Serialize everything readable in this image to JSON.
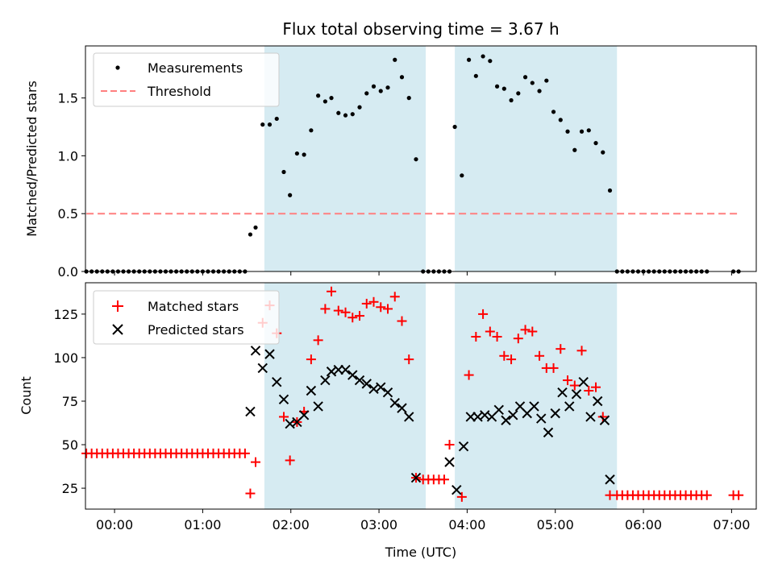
{
  "figure": {
    "title": "Flux total observing time = 3.67 h",
    "xlabel": "Time (UTC)"
  },
  "chart_data": [
    {
      "type": "scatter",
      "panel": "top",
      "title": "Flux total observing time = 3.67 h",
      "xlabel": "",
      "ylabel": "Matched/Predicted stars",
      "xlim": [
        -0.33,
        7.28
      ],
      "ylim": [
        0,
        1.95
      ],
      "x_ticks": [
        0,
        1,
        2,
        3,
        4,
        5,
        6,
        7
      ],
      "y_ticks": [
        0.0,
        0.5,
        1.0,
        1.5
      ],
      "y_tick_labels": [
        "0.0",
        "0.5",
        "1.0",
        "1.5"
      ],
      "grid": false,
      "legend": "top-left",
      "shaded_intervals": [
        [
          1.7,
          3.53
        ],
        [
          3.86,
          5.7
        ]
      ],
      "shade_color": "#add8e6",
      "series": [
        {
          "name": "Measurements",
          "marker": "dot",
          "color": "#000000",
          "points": [
            [
              -0.32,
              0
            ],
            [
              -0.26,
              0
            ],
            [
              -0.2,
              0
            ],
            [
              -0.14,
              0
            ],
            [
              -0.08,
              0
            ],
            [
              -0.02,
              0
            ],
            [
              0.04,
              0
            ],
            [
              0.1,
              0
            ],
            [
              0.16,
              0
            ],
            [
              0.22,
              0
            ],
            [
              0.28,
              0
            ],
            [
              0.34,
              0
            ],
            [
              0.4,
              0
            ],
            [
              0.46,
              0
            ],
            [
              0.52,
              0
            ],
            [
              0.58,
              0
            ],
            [
              0.64,
              0
            ],
            [
              0.7,
              0
            ],
            [
              0.76,
              0
            ],
            [
              0.82,
              0
            ],
            [
              0.88,
              0
            ],
            [
              0.94,
              0
            ],
            [
              1.0,
              0
            ],
            [
              1.06,
              0
            ],
            [
              1.12,
              0
            ],
            [
              1.18,
              0
            ],
            [
              1.24,
              0
            ],
            [
              1.3,
              0
            ],
            [
              1.36,
              0
            ],
            [
              1.42,
              0
            ],
            [
              1.48,
              0
            ],
            [
              1.54,
              0.32
            ],
            [
              1.6,
              0.38
            ],
            [
              1.68,
              1.27
            ],
            [
              1.76,
              1.27
            ],
            [
              1.84,
              1.32
            ],
            [
              1.92,
              0.86
            ],
            [
              1.99,
              0.66
            ],
            [
              2.07,
              1.02
            ],
            [
              2.15,
              1.01
            ],
            [
              2.23,
              1.22
            ],
            [
              2.31,
              1.52
            ],
            [
              2.39,
              1.47
            ],
            [
              2.46,
              1.5
            ],
            [
              2.54,
              1.37
            ],
            [
              2.62,
              1.35
            ],
            [
              2.7,
              1.36
            ],
            [
              2.78,
              1.42
            ],
            [
              2.86,
              1.54
            ],
            [
              2.94,
              1.6
            ],
            [
              3.02,
              1.56
            ],
            [
              3.1,
              1.59
            ],
            [
              3.18,
              1.83
            ],
            [
              3.26,
              1.68
            ],
            [
              3.34,
              1.5
            ],
            [
              3.42,
              0.97
            ],
            [
              3.5,
              0
            ],
            [
              3.56,
              0
            ],
            [
              3.62,
              0
            ],
            [
              3.68,
              0
            ],
            [
              3.74,
              0
            ],
            [
              3.8,
              0
            ],
            [
              3.86,
              1.25
            ],
            [
              3.94,
              0.83
            ],
            [
              4.02,
              1.83
            ],
            [
              4.1,
              1.69
            ],
            [
              4.18,
              1.86
            ],
            [
              4.26,
              1.82
            ],
            [
              4.34,
              1.6
            ],
            [
              4.42,
              1.58
            ],
            [
              4.5,
              1.48
            ],
            [
              4.58,
              1.54
            ],
            [
              4.66,
              1.68
            ],
            [
              4.74,
              1.63
            ],
            [
              4.82,
              1.56
            ],
            [
              4.9,
              1.65
            ],
            [
              4.98,
              1.38
            ],
            [
              5.06,
              1.31
            ],
            [
              5.14,
              1.21
            ],
            [
              5.22,
              1.05
            ],
            [
              5.3,
              1.21
            ],
            [
              5.38,
              1.22
            ],
            [
              5.46,
              1.11
            ],
            [
              5.54,
              1.03
            ],
            [
              5.62,
              0.7
            ],
            [
              5.7,
              0
            ],
            [
              5.76,
              0
            ],
            [
              5.82,
              0
            ],
            [
              5.88,
              0
            ],
            [
              5.94,
              0
            ],
            [
              6.0,
              0
            ],
            [
              6.06,
              0
            ],
            [
              6.12,
              0
            ],
            [
              6.18,
              0
            ],
            [
              6.24,
              0
            ],
            [
              6.3,
              0
            ],
            [
              6.36,
              0
            ],
            [
              6.42,
              0
            ],
            [
              6.48,
              0
            ],
            [
              6.54,
              0
            ],
            [
              6.6,
              0
            ],
            [
              6.66,
              0
            ],
            [
              6.72,
              0
            ],
            [
              7.02,
              0
            ],
            [
              7.08,
              0
            ]
          ]
        },
        {
          "name": "Threshold",
          "style": "dashed",
          "color": "#ff7f7f",
          "points": [
            [
              -0.32,
              0.5
            ],
            [
              7.08,
              0.5
            ]
          ]
        }
      ]
    },
    {
      "type": "scatter",
      "panel": "bottom",
      "xlabel": "Time (UTC)",
      "ylabel": "Count",
      "xlim": [
        -0.33,
        7.28
      ],
      "ylim": [
        13,
        143
      ],
      "x_ticks": [
        0,
        1,
        2,
        3,
        4,
        5,
        6,
        7
      ],
      "x_tick_labels": [
        "00:00",
        "01:00",
        "02:00",
        "03:00",
        "04:00",
        "05:00",
        "06:00",
        "07:00"
      ],
      "y_ticks": [
        25,
        50,
        75,
        100,
        125
      ],
      "y_tick_labels": [
        "25",
        "50",
        "75",
        "100",
        "125"
      ],
      "grid": false,
      "legend": "top-left",
      "shaded_intervals": [
        [
          1.7,
          3.53
        ],
        [
          3.86,
          5.7
        ]
      ],
      "shade_color": "#add8e6",
      "series": [
        {
          "name": "Matched stars",
          "marker": "plus",
          "color": "#ff0000",
          "points": [
            [
              -0.32,
              45
            ],
            [
              -0.26,
              45
            ],
            [
              -0.2,
              45
            ],
            [
              -0.14,
              45
            ],
            [
              -0.08,
              45
            ],
            [
              -0.02,
              45
            ],
            [
              0.04,
              45
            ],
            [
              0.1,
              45
            ],
            [
              0.16,
              45
            ],
            [
              0.22,
              45
            ],
            [
              0.28,
              45
            ],
            [
              0.34,
              45
            ],
            [
              0.4,
              45
            ],
            [
              0.46,
              45
            ],
            [
              0.52,
              45
            ],
            [
              0.58,
              45
            ],
            [
              0.64,
              45
            ],
            [
              0.7,
              45
            ],
            [
              0.76,
              45
            ],
            [
              0.82,
              45
            ],
            [
              0.88,
              45
            ],
            [
              0.94,
              45
            ],
            [
              1.0,
              45
            ],
            [
              1.06,
              45
            ],
            [
              1.12,
              45
            ],
            [
              1.18,
              45
            ],
            [
              1.24,
              45
            ],
            [
              1.3,
              45
            ],
            [
              1.36,
              45
            ],
            [
              1.42,
              45
            ],
            [
              1.48,
              45
            ],
            [
              1.54,
              22
            ],
            [
              1.6,
              40
            ],
            [
              1.68,
              120
            ],
            [
              1.76,
              130
            ],
            [
              1.84,
              114
            ],
            [
              1.92,
              66
            ],
            [
              1.99,
              41
            ],
            [
              2.07,
              63
            ],
            [
              2.15,
              69
            ],
            [
              2.23,
              99
            ],
            [
              2.31,
              110
            ],
            [
              2.39,
              128
            ],
            [
              2.46,
              138
            ],
            [
              2.54,
              127
            ],
            [
              2.62,
              126
            ],
            [
              2.7,
              123
            ],
            [
              2.78,
              124
            ],
            [
              2.86,
              131
            ],
            [
              2.94,
              132
            ],
            [
              3.02,
              129
            ],
            [
              3.1,
              128
            ],
            [
              3.18,
              135
            ],
            [
              3.26,
              121
            ],
            [
              3.34,
              99
            ],
            [
              3.42,
              31
            ],
            [
              3.5,
              30
            ],
            [
              3.56,
              30
            ],
            [
              3.62,
              30
            ],
            [
              3.68,
              30
            ],
            [
              3.74,
              30
            ],
            [
              3.8,
              50
            ],
            [
              3.94,
              20
            ],
            [
              4.02,
              90
            ],
            [
              4.1,
              112
            ],
            [
              4.18,
              125
            ],
            [
              4.26,
              115
            ],
            [
              4.34,
              112
            ],
            [
              4.42,
              101
            ],
            [
              4.5,
              99
            ],
            [
              4.58,
              111
            ],
            [
              4.66,
              116
            ],
            [
              4.74,
              115
            ],
            [
              4.82,
              101
            ],
            [
              4.9,
              94
            ],
            [
              4.98,
              94
            ],
            [
              5.06,
              105
            ],
            [
              5.14,
              87
            ],
            [
              5.22,
              84
            ],
            [
              5.3,
              104
            ],
            [
              5.38,
              81
            ],
            [
              5.46,
              83
            ],
            [
              5.54,
              66
            ],
            [
              5.62,
              21
            ],
            [
              5.7,
              21
            ],
            [
              5.76,
              21
            ],
            [
              5.82,
              21
            ],
            [
              5.88,
              21
            ],
            [
              5.94,
              21
            ],
            [
              6.0,
              21
            ],
            [
              6.06,
              21
            ],
            [
              6.12,
              21
            ],
            [
              6.18,
              21
            ],
            [
              6.24,
              21
            ],
            [
              6.3,
              21
            ],
            [
              6.36,
              21
            ],
            [
              6.42,
              21
            ],
            [
              6.48,
              21
            ],
            [
              6.54,
              21
            ],
            [
              6.6,
              21
            ],
            [
              6.66,
              21
            ],
            [
              6.72,
              21
            ],
            [
              7.02,
              21
            ],
            [
              7.08,
              21
            ]
          ]
        },
        {
          "name": "Predicted stars",
          "marker": "x",
          "color": "#000000",
          "points": [
            [
              1.54,
              69
            ],
            [
              1.6,
              104
            ],
            [
              1.68,
              94
            ],
            [
              1.76,
              102
            ],
            [
              1.84,
              86
            ],
            [
              1.92,
              76
            ],
            [
              1.99,
              62
            ],
            [
              2.07,
              63
            ],
            [
              2.15,
              67
            ],
            [
              2.23,
              81
            ],
            [
              2.31,
              72
            ],
            [
              2.39,
              87
            ],
            [
              2.46,
              92
            ],
            [
              2.54,
              93
            ],
            [
              2.62,
              93
            ],
            [
              2.7,
              90
            ],
            [
              2.78,
              87
            ],
            [
              2.86,
              85
            ],
            [
              2.94,
              82
            ],
            [
              3.02,
              83
            ],
            [
              3.1,
              80
            ],
            [
              3.18,
              74
            ],
            [
              3.26,
              71
            ],
            [
              3.34,
              66
            ],
            [
              3.42,
              31
            ],
            [
              3.8,
              40
            ],
            [
              3.88,
              24
            ],
            [
              3.96,
              49
            ],
            [
              4.04,
              66
            ],
            [
              4.12,
              66
            ],
            [
              4.2,
              67
            ],
            [
              4.28,
              66
            ],
            [
              4.36,
              70
            ],
            [
              4.44,
              64
            ],
            [
              4.52,
              67
            ],
            [
              4.6,
              72
            ],
            [
              4.68,
              68
            ],
            [
              4.76,
              72
            ],
            [
              4.84,
              65
            ],
            [
              4.92,
              57
            ],
            [
              5.0,
              68
            ],
            [
              5.08,
              80
            ],
            [
              5.16,
              72
            ],
            [
              5.24,
              79
            ],
            [
              5.32,
              86
            ],
            [
              5.4,
              66
            ],
            [
              5.48,
              75
            ],
            [
              5.56,
              64
            ],
            [
              5.62,
              30
            ]
          ]
        }
      ]
    }
  ]
}
